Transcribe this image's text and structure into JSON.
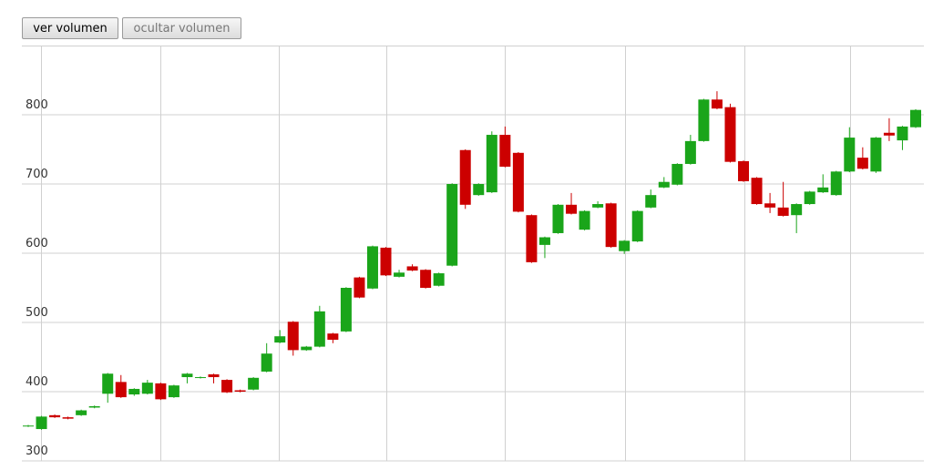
{
  "buttons": [
    "ver volumen",
    "ocultar volumen"
  ],
  "chart_data": {
    "type": "candlestick",
    "open": [
      350,
      346,
      366,
      363,
      366,
      377,
      397,
      414,
      396,
      397,
      412,
      392,
      421,
      420,
      425,
      417,
      402,
      403,
      429,
      471,
      501,
      460,
      465,
      484,
      487,
      565,
      549,
      608,
      566,
      581,
      576,
      553,
      582,
      749,
      684,
      688,
      771,
      745,
      655,
      612,
      629,
      670,
      634,
      666,
      672,
      603,
      617,
      666,
      695,
      699,
      729,
      762,
      822,
      811,
      733,
      709,
      672,
      666,
      655,
      671,
      688,
      684,
      718,
      738,
      718,
      774,
      763,
      782
    ],
    "high": [
      352,
      365,
      367,
      364,
      374,
      380,
      427,
      424,
      405,
      417,
      413,
      410,
      427,
      422,
      426,
      418,
      403,
      421,
      470,
      489,
      502,
      466,
      524,
      485,
      551,
      566,
      611,
      609,
      576,
      584,
      577,
      572,
      701,
      750,
      701,
      776,
      783,
      746,
      656,
      624,
      671,
      687,
      662,
      675,
      673,
      619,
      662,
      692,
      710,
      730,
      771,
      823,
      834,
      816,
      734,
      710,
      687,
      703,
      672,
      690,
      714,
      719,
      782,
      753,
      768,
      795,
      784,
      808
    ],
    "low": [
      349,
      345,
      362,
      360,
      365,
      376,
      384,
      391,
      394,
      396,
      388,
      391,
      412,
      419,
      412,
      398,
      399,
      402,
      428,
      470,
      452,
      459,
      464,
      470,
      486,
      535,
      548,
      567,
      565,
      574,
      549,
      552,
      581,
      664,
      683,
      687,
      724,
      659,
      586,
      593,
      628,
      656,
      633,
      665,
      608,
      599,
      616,
      665,
      694,
      698,
      728,
      761,
      808,
      731,
      703,
      670,
      658,
      653,
      629,
      670,
      687,
      683,
      717,
      721,
      716,
      762,
      749,
      781
    ],
    "close": [
      351,
      364,
      363,
      361,
      373,
      379,
      426,
      392,
      404,
      413,
      389,
      409,
      426,
      421,
      421,
      399,
      400,
      420,
      455,
      480,
      460,
      465,
      516,
      475,
      550,
      536,
      610,
      568,
      572,
      575,
      550,
      571,
      700,
      670,
      700,
      771,
      725,
      660,
      587,
      623,
      670,
      657,
      661,
      671,
      609,
      618,
      661,
      684,
      703,
      729,
      762,
      822,
      809,
      732,
      704,
      671,
      666,
      654,
      671,
      689,
      695,
      718,
      767,
      722,
      767,
      770,
      783,
      807
    ],
    "up_color": "#1aa51a",
    "down_color": "#cc0000",
    "ylim": [
      300,
      900
    ],
    "yticks": [
      300,
      400,
      500,
      600,
      700,
      800
    ],
    "grid": true
  }
}
